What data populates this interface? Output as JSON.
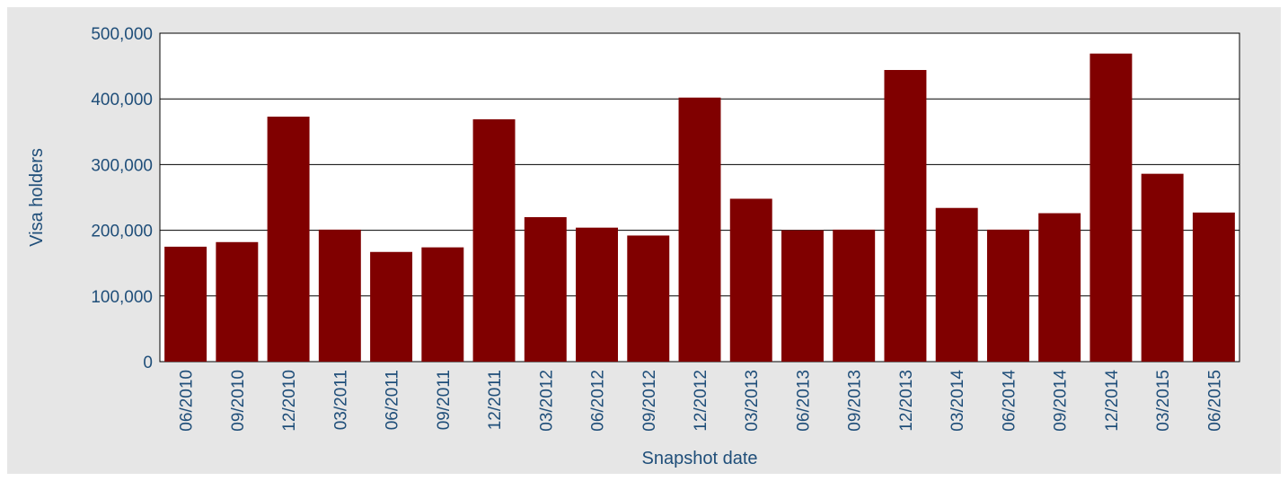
{
  "chart_data": {
    "type": "bar",
    "title": "",
    "xlabel": "Snapshot date",
    "ylabel": "Visa holders",
    "ylim": [
      0,
      500000
    ],
    "yticks": [
      0,
      100000,
      200000,
      300000,
      400000,
      500000
    ],
    "ytick_labels": [
      "0",
      "100,000",
      "200,000",
      "300,000",
      "400,000",
      "500,000"
    ],
    "grid": "horizontal",
    "categories": [
      "06/2010",
      "09/2010",
      "12/2010",
      "03/2011",
      "06/2011",
      "09/2011",
      "12/2011",
      "03/2012",
      "06/2012",
      "09/2012",
      "12/2012",
      "03/2013",
      "06/2013",
      "09/2013",
      "12/2013",
      "03/2014",
      "06/2014",
      "09/2014",
      "12/2014",
      "03/2015",
      "06/2015"
    ],
    "values": [
      175000,
      182000,
      373000,
      201000,
      167000,
      174000,
      369000,
      220000,
      204000,
      192000,
      402000,
      248000,
      200000,
      201000,
      444000,
      234000,
      201000,
      226000,
      469000,
      286000,
      227000
    ],
    "colors": {
      "bar": "#800000",
      "background": "#e6e6e6",
      "plot_background": "#ffffff",
      "text": "#1f4e79",
      "grid": "#000000"
    }
  }
}
